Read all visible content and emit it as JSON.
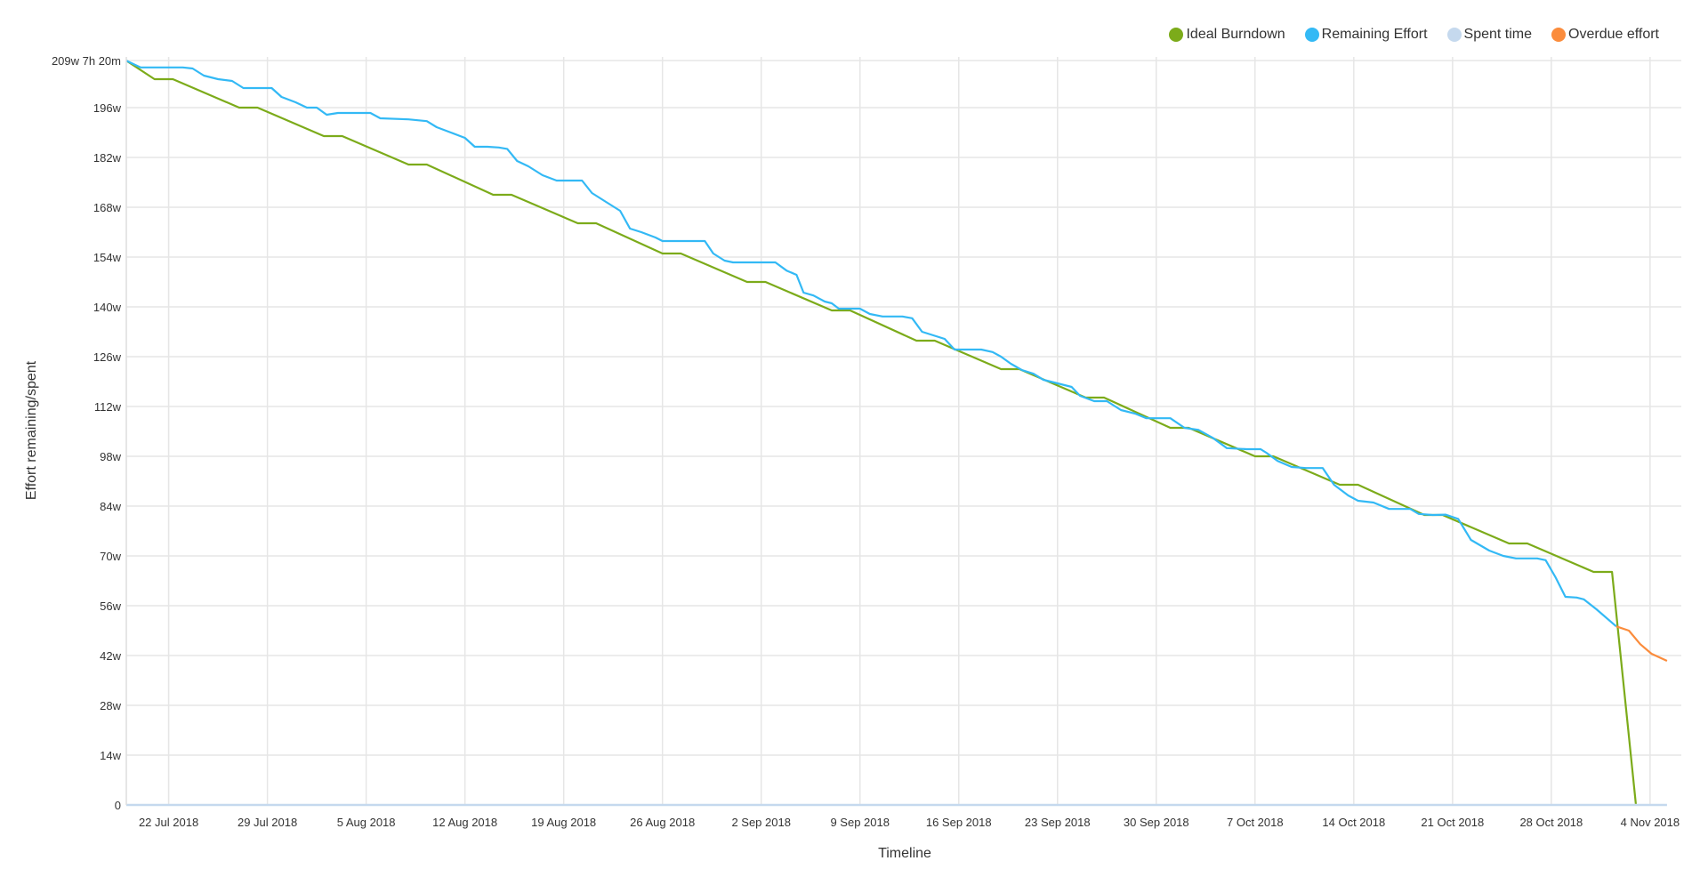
{
  "legend": {
    "items": [
      {
        "label": "Ideal Burndown",
        "color": "#7cab1a"
      },
      {
        "label": "Remaining Effort",
        "color": "#33b9f5"
      },
      {
        "label": "Spent time",
        "color": "#c5d9ee"
      },
      {
        "label": "Overdue effort",
        "color": "#fb8c3c"
      }
    ]
  },
  "chart_data": {
    "type": "line",
    "title": "",
    "xlabel": "Timeline",
    "ylabel": "Effort remaining/spent",
    "x_unit": "day offset from 19 Jul 2018",
    "x_range": [
      "19 Jul 2018",
      "6 Nov 2018"
    ],
    "ylim": [
      0,
      209.22
    ],
    "y_unit": "weeks",
    "grid": true,
    "legend_position": "top-right",
    "x_ticks": [
      {
        "label": "22 Jul 2018",
        "day": 3
      },
      {
        "label": "29 Jul 2018",
        "day": 10
      },
      {
        "label": "5 Aug 2018",
        "day": 17
      },
      {
        "label": "12 Aug 2018",
        "day": 24
      },
      {
        "label": "19 Aug 2018",
        "day": 31
      },
      {
        "label": "26 Aug 2018",
        "day": 38
      },
      {
        "label": "2 Sep 2018",
        "day": 45
      },
      {
        "label": "9 Sep 2018",
        "day": 52
      },
      {
        "label": "16 Sep 2018",
        "day": 59
      },
      {
        "label": "23 Sep 2018",
        "day": 66
      },
      {
        "label": "30 Sep 2018",
        "day": 73
      },
      {
        "label": "7 Oct 2018",
        "day": 80
      },
      {
        "label": "14 Oct 2018",
        "day": 87
      },
      {
        "label": "21 Oct 2018",
        "day": 94
      },
      {
        "label": "28 Oct 2018",
        "day": 101
      },
      {
        "label": "4 Nov 2018",
        "day": 108
      }
    ],
    "y_ticks": [
      {
        "label": "0",
        "value": 0
      },
      {
        "label": "14w",
        "value": 14
      },
      {
        "label": "28w",
        "value": 28
      },
      {
        "label": "42w",
        "value": 42
      },
      {
        "label": "56w",
        "value": 56
      },
      {
        "label": "70w",
        "value": 70
      },
      {
        "label": "84w",
        "value": 84
      },
      {
        "label": "98w",
        "value": 98
      },
      {
        "label": "112w",
        "value": 112
      },
      {
        "label": "126w",
        "value": 126
      },
      {
        "label": "140w",
        "value": 140
      },
      {
        "label": "154w",
        "value": 154
      },
      {
        "label": "168w",
        "value": 168
      },
      {
        "label": "182w",
        "value": 182
      },
      {
        "label": "196w",
        "value": 196
      },
      {
        "label": "209w 7h 20m",
        "value": 209.22
      }
    ],
    "series": [
      {
        "name": "Ideal Burndown",
        "color": "#7cab1a",
        "points": [
          [
            0,
            209.2
          ],
          [
            2,
            204
          ],
          [
            3.3,
            204
          ],
          [
            8,
            196
          ],
          [
            9.3,
            196
          ],
          [
            14,
            188
          ],
          [
            15.3,
            188
          ],
          [
            20,
            180
          ],
          [
            21.3,
            180
          ],
          [
            26,
            171.5
          ],
          [
            27.3,
            171.5
          ],
          [
            32,
            163.5
          ],
          [
            33.3,
            163.5
          ],
          [
            38,
            155
          ],
          [
            39.3,
            155
          ],
          [
            44,
            147
          ],
          [
            45.3,
            147
          ],
          [
            50,
            139
          ],
          [
            51.3,
            139
          ],
          [
            56,
            130.5
          ],
          [
            57.3,
            130.5
          ],
          [
            62,
            122.5
          ],
          [
            63.3,
            122.5
          ],
          [
            68,
            114.5
          ],
          [
            69.3,
            114.5
          ],
          [
            74,
            106
          ],
          [
            75.3,
            106
          ],
          [
            80,
            98
          ],
          [
            81.3,
            98
          ],
          [
            86,
            90
          ],
          [
            87.3,
            90
          ],
          [
            92,
            81.5
          ],
          [
            93.3,
            81.5
          ],
          [
            98,
            73.5
          ],
          [
            99.3,
            73.5
          ],
          [
            104,
            65.5
          ],
          [
            105.3,
            65.5
          ],
          [
            107,
            0
          ]
        ]
      },
      {
        "name": "Remaining Effort",
        "color": "#33b9f5",
        "points": [
          [
            0,
            209.2
          ],
          [
            1,
            207.3
          ],
          [
            4,
            207.3
          ],
          [
            4.7,
            207
          ],
          [
            5.5,
            205
          ],
          [
            6.5,
            204
          ],
          [
            7.5,
            203.5
          ],
          [
            8.3,
            201.5
          ],
          [
            10.3,
            201.5
          ],
          [
            11,
            199
          ],
          [
            12,
            197.5
          ],
          [
            12.8,
            196
          ],
          [
            13.5,
            196
          ],
          [
            14.2,
            194
          ],
          [
            15,
            194.5
          ],
          [
            17.3,
            194.5
          ],
          [
            18,
            193
          ],
          [
            20,
            192.7
          ],
          [
            21.3,
            192.2
          ],
          [
            22,
            190.5
          ],
          [
            23,
            189
          ],
          [
            24,
            187.5
          ],
          [
            24.7,
            185
          ],
          [
            25.6,
            185
          ],
          [
            26.4,
            184.8
          ],
          [
            27,
            184.4
          ],
          [
            27.7,
            181
          ],
          [
            28.5,
            179.5
          ],
          [
            29.5,
            177
          ],
          [
            30.5,
            175.5
          ],
          [
            32.3,
            175.5
          ],
          [
            33,
            172
          ],
          [
            34,
            169.5
          ],
          [
            35,
            167
          ],
          [
            35.7,
            162
          ],
          [
            36.5,
            161
          ],
          [
            37.5,
            159.5
          ],
          [
            38,
            158.5
          ],
          [
            41,
            158.5
          ],
          [
            41.6,
            155
          ],
          [
            42.4,
            153
          ],
          [
            43,
            152.5
          ],
          [
            46,
            152.5
          ],
          [
            46.8,
            150.2
          ],
          [
            47.5,
            149
          ],
          [
            48,
            144
          ],
          [
            48.7,
            143.2
          ],
          [
            49.5,
            141.5
          ],
          [
            50,
            141
          ],
          [
            50.5,
            139.5
          ],
          [
            52,
            139.5
          ],
          [
            52.7,
            138
          ],
          [
            53.6,
            137.3
          ],
          [
            55,
            137.3
          ],
          [
            55.7,
            136.8
          ],
          [
            56.4,
            133
          ],
          [
            57.2,
            132
          ],
          [
            58,
            131
          ],
          [
            58.7,
            128
          ],
          [
            60.6,
            128
          ],
          [
            61.4,
            127.3
          ],
          [
            62,
            126
          ],
          [
            62.7,
            124
          ],
          [
            63.5,
            122.2
          ],
          [
            64.3,
            121.2
          ],
          [
            65,
            119.5
          ],
          [
            66,
            118.5
          ],
          [
            67,
            117.5
          ],
          [
            67.6,
            115
          ],
          [
            68.6,
            113.5
          ],
          [
            69.5,
            113.5
          ],
          [
            70.5,
            111
          ],
          [
            71.5,
            110
          ],
          [
            72.3,
            108.7
          ],
          [
            74,
            108.7
          ],
          [
            75,
            106
          ],
          [
            76,
            105.4
          ],
          [
            77,
            103.2
          ],
          [
            78,
            100.3
          ],
          [
            79.4,
            100
          ],
          [
            80.4,
            100
          ],
          [
            80.8,
            99
          ],
          [
            81.6,
            96.7
          ],
          [
            82.6,
            95
          ],
          [
            83.6,
            94.7
          ],
          [
            84.8,
            94.7
          ],
          [
            85.6,
            90
          ],
          [
            86.6,
            87
          ],
          [
            87.3,
            85.5
          ],
          [
            88.4,
            85
          ],
          [
            89.5,
            83.2
          ],
          [
            91,
            83.2
          ],
          [
            91.6,
            81.8
          ],
          [
            92.6,
            81.5
          ],
          [
            93.5,
            81.6
          ],
          [
            94.4,
            80.4
          ],
          [
            95.3,
            74.5
          ],
          [
            96.6,
            71.5
          ],
          [
            97.6,
            70
          ],
          [
            98.5,
            69.3
          ],
          [
            100,
            69.3
          ],
          [
            100.6,
            68.8
          ],
          [
            101.3,
            64
          ],
          [
            102,
            58.5
          ],
          [
            102.8,
            58.3
          ],
          [
            103.3,
            57.8
          ],
          [
            104.2,
            55
          ],
          [
            105.6,
            50.2
          ]
        ]
      },
      {
        "name": "Overdue effort",
        "color": "#fb8c3c",
        "points": [
          [
            105.6,
            50.2
          ],
          [
            106.5,
            49
          ],
          [
            107.3,
            45.2
          ],
          [
            108.1,
            42.5
          ],
          [
            109.2,
            40.5
          ]
        ]
      },
      {
        "name": "Spent time",
        "color": "#c5d9ee",
        "points": [
          [
            0,
            0
          ],
          [
            109.2,
            0
          ]
        ]
      }
    ]
  },
  "axes": {
    "xlabel": "Timeline",
    "ylabel": "Effort remaining/spent"
  }
}
